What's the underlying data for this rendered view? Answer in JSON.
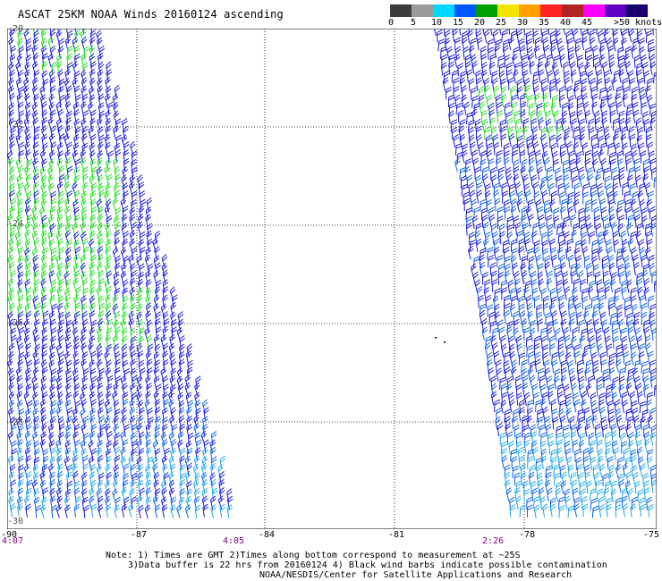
{
  "title": "ASCAT 25KM NOAA Winds 20160124 ascending",
  "legend": {
    "labels": [
      "0",
      "5",
      "10",
      "15",
      "20",
      "25",
      "30",
      "35",
      "40",
      "45",
      ">50 knots"
    ],
    "colors": [
      "#3c3c3c",
      "#9a9a9a",
      "#00d8ff",
      "#0058ff",
      "#00a000",
      "#f5e400",
      "#ffa000",
      "#ff2020",
      "#b02424",
      "#ff00ff",
      "#6000c0",
      "#1a0070"
    ]
  },
  "lat_labels": [
    "-20",
    "-22",
    "-24",
    "-26",
    "-28",
    "-30"
  ],
  "lon_labels": [
    "-90",
    "-87",
    "-84",
    "-81",
    "-78",
    "-75"
  ],
  "time_labels": [
    "4:07",
    "4:05",
    "2:26"
  ],
  "notes": {
    "line1": "Note: 1) Times are GMT 2)Times along bottom correspond to measurement at ~25S",
    "line2": "3)Data buffer is 22 hrs from 20160124 4) Black wind barbs indicate possible contamination",
    "line3": "NOAA/NESDIS/Center for Satellite Applications and Research"
  },
  "barb_colors": {
    "green": "#22dd22",
    "blue": "#1a1ad8",
    "mid_blue": "#1060e0",
    "cyan": "#20a8e0",
    "black": "#000000"
  }
}
